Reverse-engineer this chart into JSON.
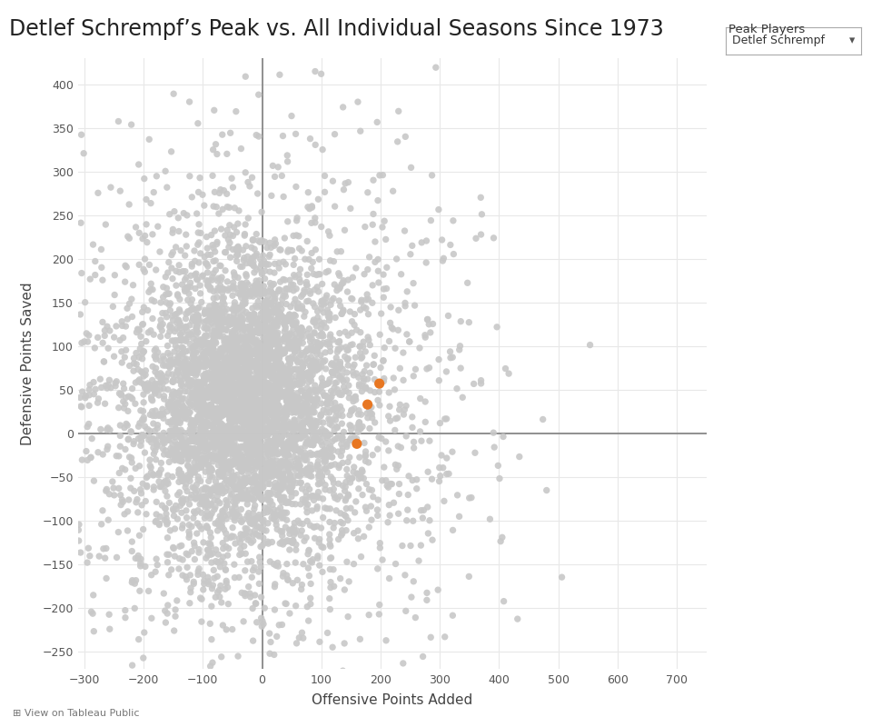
{
  "title": "Detlef Schrempf’s Peak vs. All Individual Seasons Since 1973",
  "xlabel": "Offensive Points Added",
  "ylabel": "Defensive Points Saved",
  "xlim": [
    -310,
    750
  ],
  "ylim": [
    -270,
    430
  ],
  "xticks": [
    -300,
    -200,
    -100,
    0,
    100,
    200,
    300,
    400,
    500,
    600,
    700
  ],
  "yticks": [
    -250,
    -200,
    -150,
    -100,
    -50,
    0,
    50,
    100,
    150,
    200,
    250,
    300,
    350,
    400
  ],
  "scatter_color": "#c8c8c8",
  "highlight_color": "#e87722",
  "highlight_points": [
    [
      160,
      -12
    ],
    [
      178,
      33
    ],
    [
      198,
      57
    ]
  ],
  "scatter_alpha": 0.9,
  "highlight_alpha": 1.0,
  "scatter_size": 28,
  "highlight_size": 65,
  "background_color": "#ffffff",
  "grid_color": "#e8e8e8",
  "axis_line_color": "#888888",
  "title_fontsize": 17,
  "label_fontsize": 11,
  "tick_fontsize": 9,
  "random_seed": 42,
  "legend_title": "Peak Players",
  "legend_text": "Detlef Schrempf",
  "bottom_text": "View on Tableau Public"
}
